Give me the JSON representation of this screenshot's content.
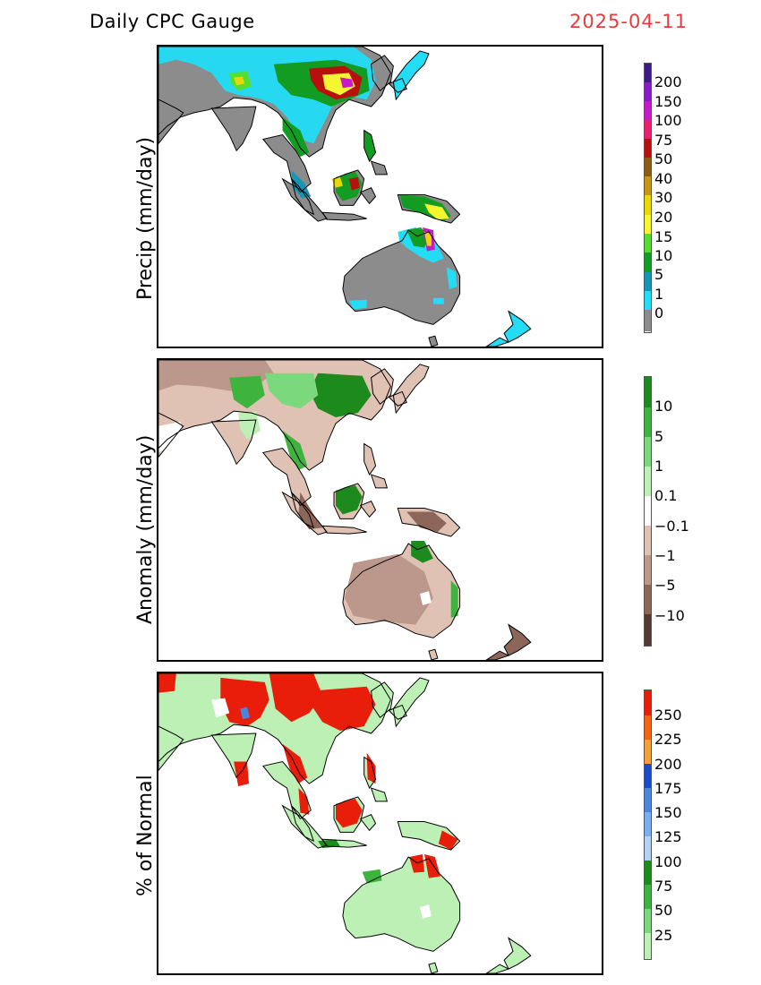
{
  "header": {
    "title": "Daily CPC Gauge",
    "date": "2025-04-11"
  },
  "panels": [
    {
      "label": "Precip (mm/day)",
      "colorbar": {
        "ticks": [
          "200",
          "150",
          "100",
          "75",
          "50",
          "40",
          "30",
          "20",
          "15",
          "10",
          "5",
          "1",
          "0"
        ],
        "colors": [
          "#3c1a88",
          "#8a1ac8",
          "#c81ac8",
          "#e8206e",
          "#b80f0f",
          "#8c5b14",
          "#c89616",
          "#e8d80a",
          "#f5f532",
          "#55dd33",
          "#129c22",
          "#1596b4",
          "#22ddf5",
          "#8c8c8c"
        ]
      }
    },
    {
      "label": "Anomaly (mm/day)",
      "colorbar": {
        "ticks": [
          "10",
          "5",
          "1",
          "0.1",
          "−0.1",
          "−1",
          "−5",
          "−10"
        ],
        "colors": [
          "#1c8a1c",
          "#3eb43e",
          "#7cd87c",
          "#bdf0b5",
          "#ffffff",
          "#e0c2b4",
          "#bc978b",
          "#8c6658",
          "#523a32"
        ]
      }
    },
    {
      "label": "% of Normal",
      "colorbar": {
        "ticks": [
          "250",
          "225",
          "200",
          "175",
          "150",
          "125",
          "100",
          "75",
          "50",
          "25"
        ],
        "colors": [
          "#e81e0a",
          "#f56414",
          "#f5a03c",
          "#1a4cc8",
          "#4a86e0",
          "#7aaef0",
          "#b4d2f5",
          "#1a8c1a",
          "#3eb43e",
          "#7cd87c",
          "#bdf0b5"
        ]
      }
    }
  ]
}
